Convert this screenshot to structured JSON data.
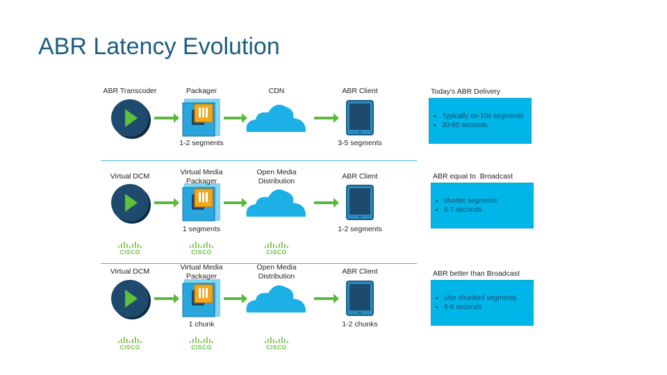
{
  "title": "ABR Latency Evolution",
  "rows": [
    {
      "nodes": [
        "ABR Transcoder",
        "Packager",
        "CDN",
        "ABR Client"
      ],
      "notes": [
        "1-2 segments",
        "3-5 segments"
      ],
      "box": {
        "title": "Today's ABR Delivery",
        "bullets": [
          "Typically 6s-10s segments",
          "30-60 seconds"
        ]
      },
      "logos": []
    },
    {
      "nodes": [
        "Virtual DCM",
        "Virtual Media Packager",
        "Open Media Distribution",
        "ABR Client"
      ],
      "notes": [
        "1 segments",
        "1-2 segments"
      ],
      "box": {
        "title": "ABR equal to  Broadcast",
        "bullets": [
          "shorter segments",
          "6-7 seconds"
        ]
      },
      "logos": [
        "CISCO",
        "CISCO",
        "CISCO"
      ]
    },
    {
      "nodes": [
        "Virtual DCM",
        "Virtual Media Packager",
        "Open Media Distribution",
        "ABR Client"
      ],
      "notes": [
        "1 chunk",
        "1-2 chunks"
      ],
      "box": {
        "title": "ABR better than Broadcast",
        "bullets": [
          "Use chunked segments",
          "4-6 seconds"
        ]
      },
      "logos": [
        "CISCO",
        "CISCO",
        "CISCO"
      ]
    }
  ]
}
